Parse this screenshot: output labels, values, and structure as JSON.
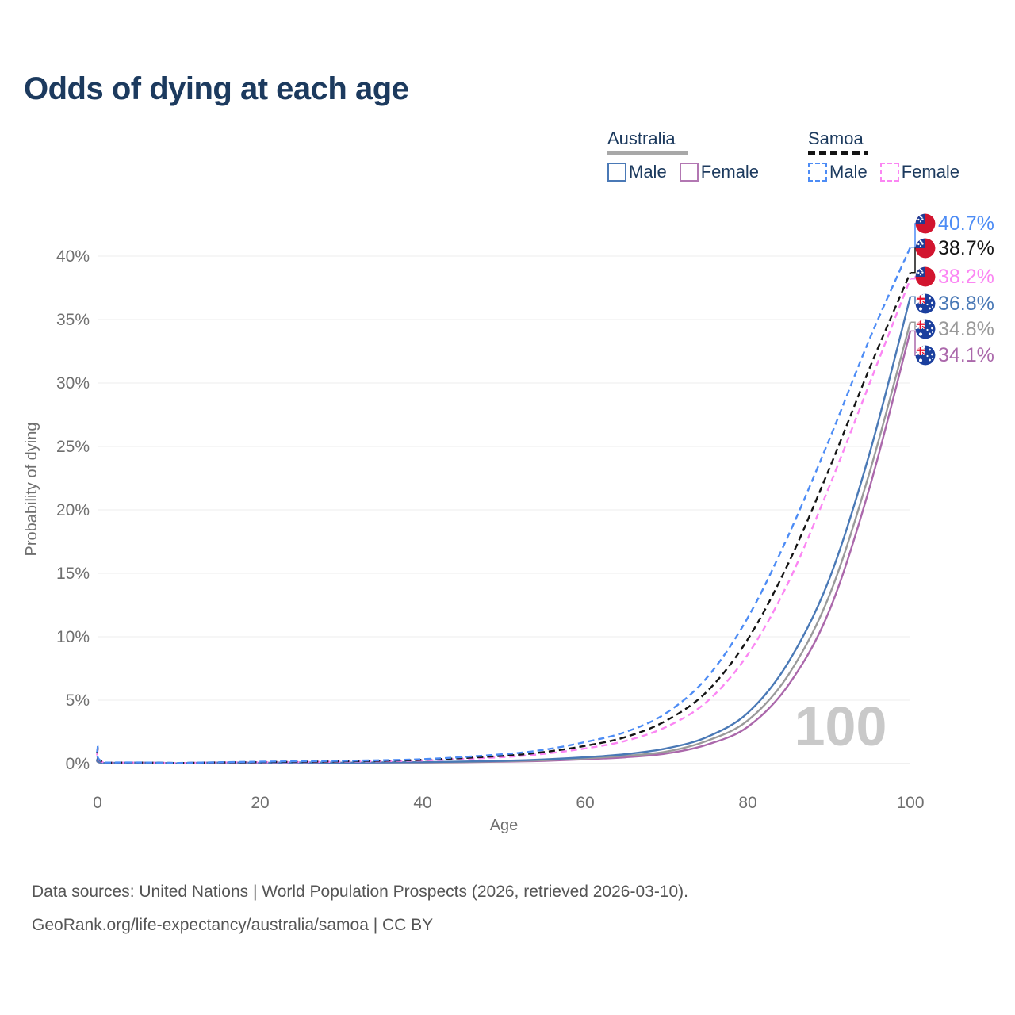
{
  "title": "Odds of dying at each age",
  "legend": {
    "groups": [
      {
        "name": "Australia",
        "underline_style": "solid",
        "underline_color": "#a8a8a8",
        "items": [
          {
            "label": "Male",
            "color": "#4a79b6",
            "dash": false
          },
          {
            "label": "Female",
            "color": "#b277b2",
            "dash": false
          }
        ]
      },
      {
        "name": "Samoa",
        "underline_style": "dashed",
        "underline_color": "#141414",
        "items": [
          {
            "label": "Male",
            "color": "#4d8cf5",
            "dash": true
          },
          {
            "label": "Female",
            "color": "#fb86f3",
            "dash": true
          }
        ]
      }
    ]
  },
  "footer": {
    "line1": "Data sources: United Nations | World Population Prospects (2026, retrieved 2026-03-10).",
    "line2": "GeoRank.org/life-expectancy/australia/samoa | CC BY"
  },
  "chart_data": {
    "type": "line",
    "title": "Odds of dying at each age",
    "xlabel": "Age",
    "ylabel": "Probability of dying",
    "xlim": [
      0,
      100
    ],
    "ylim_pct": [
      0,
      42
    ],
    "grid": "horizontal",
    "watermark": "100",
    "x_ticks": [
      {
        "v": 0,
        "label": "0"
      },
      {
        "v": 20,
        "label": "20"
      },
      {
        "v": 40,
        "label": "40"
      },
      {
        "v": 60,
        "label": "60"
      },
      {
        "v": 80,
        "label": "80"
      },
      {
        "v": 100,
        "label": "100"
      }
    ],
    "y_ticks": [
      {
        "v": 0,
        "label": "0%"
      },
      {
        "v": 5,
        "label": "5%"
      },
      {
        "v": 10,
        "label": "10%"
      },
      {
        "v": 15,
        "label": "15%"
      },
      {
        "v": 20,
        "label": "20%"
      },
      {
        "v": 25,
        "label": "25%"
      },
      {
        "v": 30,
        "label": "30%"
      },
      {
        "v": 35,
        "label": "35%"
      },
      {
        "v": 40,
        "label": "40%"
      }
    ],
    "series": [
      {
        "name": "Samoa Male",
        "country": "Samoa",
        "sex": "male",
        "flag": "samoa",
        "line": "dashed",
        "color": "#4d8cf5",
        "end_value": 40.7,
        "end_label": "40.7%",
        "points": [
          [
            0,
            1.4
          ],
          [
            1,
            0.08
          ],
          [
            10,
            0.05
          ],
          [
            20,
            0.15
          ],
          [
            30,
            0.22
          ],
          [
            40,
            0.35
          ],
          [
            50,
            0.75
          ],
          [
            55,
            1.1
          ],
          [
            60,
            1.7
          ],
          [
            65,
            2.5
          ],
          [
            70,
            4.0
          ],
          [
            75,
            6.8
          ],
          [
            80,
            11.5
          ],
          [
            85,
            18.0
          ],
          [
            90,
            25.5
          ],
          [
            95,
            33.5
          ],
          [
            100,
            40.7
          ]
        ]
      },
      {
        "name": "Samoa Total",
        "country": "Samoa",
        "sex": "total",
        "flag": "samoa",
        "line": "dashed",
        "color": "#141414",
        "end_value": 38.7,
        "end_label": "38.7%",
        "points": [
          [
            0,
            1.3
          ],
          [
            1,
            0.07
          ],
          [
            10,
            0.04
          ],
          [
            20,
            0.12
          ],
          [
            30,
            0.18
          ],
          [
            40,
            0.3
          ],
          [
            50,
            0.62
          ],
          [
            55,
            0.92
          ],
          [
            60,
            1.4
          ],
          [
            65,
            2.1
          ],
          [
            70,
            3.4
          ],
          [
            75,
            5.7
          ],
          [
            80,
            9.8
          ],
          [
            85,
            15.8
          ],
          [
            90,
            23.2
          ],
          [
            95,
            31.2
          ],
          [
            100,
            38.7
          ]
        ]
      },
      {
        "name": "Samoa Female",
        "country": "Samoa",
        "sex": "female",
        "flag": "samoa",
        "line": "dashed",
        "color": "#fb86f3",
        "end_value": 38.2,
        "end_label": "38.2%",
        "points": [
          [
            0,
            1.15
          ],
          [
            1,
            0.06
          ],
          [
            10,
            0.04
          ],
          [
            20,
            0.1
          ],
          [
            30,
            0.15
          ],
          [
            40,
            0.25
          ],
          [
            50,
            0.52
          ],
          [
            55,
            0.78
          ],
          [
            60,
            1.2
          ],
          [
            65,
            1.8
          ],
          [
            70,
            2.9
          ],
          [
            75,
            4.9
          ],
          [
            80,
            8.6
          ],
          [
            85,
            14.3
          ],
          [
            90,
            21.8
          ],
          [
            95,
            30.0
          ],
          [
            100,
            38.2
          ]
        ]
      },
      {
        "name": "Australia Male",
        "country": "Australia",
        "sex": "male",
        "flag": "australia",
        "line": "solid",
        "color": "#4a79b6",
        "end_value": 36.8,
        "end_label": "36.8%",
        "points": [
          [
            0,
            0.45
          ],
          [
            1,
            0.03
          ],
          [
            10,
            0.01
          ],
          [
            20,
            0.05
          ],
          [
            30,
            0.07
          ],
          [
            40,
            0.11
          ],
          [
            50,
            0.22
          ],
          [
            55,
            0.33
          ],
          [
            60,
            0.5
          ],
          [
            65,
            0.75
          ],
          [
            70,
            1.2
          ],
          [
            75,
            2.1
          ],
          [
            80,
            4.0
          ],
          [
            85,
            8.0
          ],
          [
            90,
            14.5
          ],
          [
            95,
            24.5
          ],
          [
            100,
            36.8
          ]
        ]
      },
      {
        "name": "Australia Total",
        "country": "Australia",
        "sex": "total",
        "flag": "australia",
        "line": "solid",
        "color": "#9a9a9a",
        "end_value": 34.8,
        "end_label": "34.8%",
        "points": [
          [
            0,
            0.4
          ],
          [
            1,
            0.03
          ],
          [
            10,
            0.01
          ],
          [
            20,
            0.04
          ],
          [
            30,
            0.06
          ],
          [
            40,
            0.09
          ],
          [
            50,
            0.18
          ],
          [
            55,
            0.27
          ],
          [
            60,
            0.42
          ],
          [
            65,
            0.62
          ],
          [
            70,
            0.95
          ],
          [
            75,
            1.8
          ],
          [
            80,
            3.4
          ],
          [
            85,
            7.0
          ],
          [
            90,
            13.2
          ],
          [
            95,
            23.0
          ],
          [
            100,
            34.8
          ]
        ]
      },
      {
        "name": "Australia Female",
        "country": "Australia",
        "sex": "female",
        "flag": "australia",
        "line": "solid",
        "color": "#ab68ab",
        "end_value": 34.1,
        "end_label": "34.1%",
        "points": [
          [
            0,
            0.35
          ],
          [
            1,
            0.02
          ],
          [
            10,
            0.01
          ],
          [
            20,
            0.03
          ],
          [
            30,
            0.05
          ],
          [
            40,
            0.08
          ],
          [
            50,
            0.15
          ],
          [
            55,
            0.22
          ],
          [
            60,
            0.34
          ],
          [
            65,
            0.5
          ],
          [
            70,
            0.8
          ],
          [
            75,
            1.5
          ],
          [
            80,
            2.9
          ],
          [
            85,
            6.2
          ],
          [
            90,
            12.0
          ],
          [
            95,
            21.8
          ],
          [
            100,
            34.1
          ]
        ]
      }
    ]
  }
}
